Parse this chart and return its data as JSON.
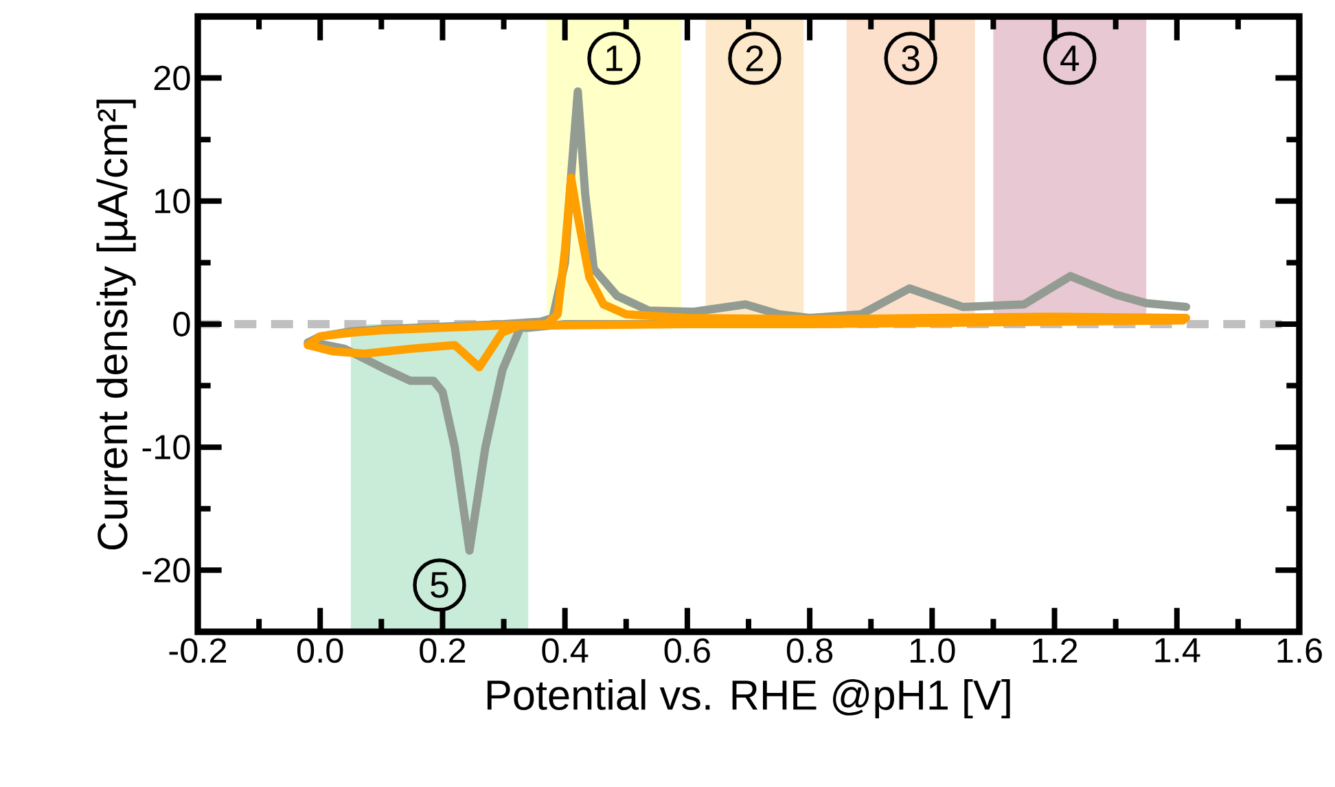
{
  "chart_data": {
    "type": "line",
    "xlabel": "Potential vs. RHE @pH1 [V]",
    "ylabel": "Current density [µA/cm²]",
    "xlim": [
      -0.2,
      1.6
    ],
    "ylim": [
      -25,
      25
    ],
    "xticks": [
      {
        "value": -0.2,
        "label": "-0.2"
      },
      {
        "value": 0.0,
        "label": "0.0"
      },
      {
        "value": 0.2,
        "label": "0.2"
      },
      {
        "value": 0.4,
        "label": "0.4"
      },
      {
        "value": 0.6,
        "label": "0.6"
      },
      {
        "value": 0.8,
        "label": "0.8"
      },
      {
        "value": 1.0,
        "label": "1.0"
      },
      {
        "value": 1.2,
        "label": "1.2"
      },
      {
        "value": 1.4,
        "label": "1.4"
      },
      {
        "value": 1.6,
        "label": "1.6"
      }
    ],
    "yticks": [
      -20,
      -10,
      0,
      10,
      20
    ],
    "line_style": "solid",
    "series": [
      {
        "color": "#929c92",
        "x": [
          -0.02,
          0.0,
          0.05,
          0.1,
          0.2,
          0.3,
          0.36,
          0.38,
          0.4,
          0.41,
          0.421,
          0.433,
          0.447,
          0.485,
          0.537,
          0.61,
          0.695,
          0.75,
          0.8,
          0.884,
          0.963,
          1.05,
          1.15,
          1.226,
          1.3,
          1.35,
          1.415
        ],
        "values": [
          -1.5,
          -1.0,
          -0.6,
          -0.4,
          -0.2,
          0.0,
          0.2,
          0.5,
          5.0,
          12.0,
          18.9,
          10.6,
          4.5,
          2.3,
          1.1,
          1.0,
          1.6,
          0.8,
          0.5,
          0.8,
          2.9,
          1.4,
          1.6,
          3.9,
          2.4,
          1.7,
          1.4
        ]
      },
      {
        "color": "#929c92",
        "x": [
          -0.02,
          0.0,
          0.04,
          0.08,
          0.108,
          0.147,
          0.185,
          0.2,
          0.22,
          0.244,
          0.27,
          0.298,
          0.327,
          0.34,
          0.4,
          0.5,
          0.7,
          0.9,
          1.1,
          1.3,
          1.41
        ],
        "values": [
          -1.5,
          -1.6,
          -2.0,
          -3.0,
          -3.7,
          -4.6,
          -4.6,
          -5.5,
          -10.0,
          -18.4,
          -10.0,
          -3.7,
          -0.3,
          -0.3,
          0.0,
          0.0,
          null,
          0.2,
          0.2,
          0.3,
          0.4
        ]
      },
      {
        "color": "#ff9f00",
        "x": [
          -0.02,
          0.0,
          0.05,
          0.1,
          0.2,
          0.3,
          0.37,
          0.388,
          0.4,
          0.41,
          0.42,
          0.44,
          0.463,
          0.5,
          0.6,
          0.8,
          1.0,
          1.2,
          1.415
        ],
        "values": [
          -1.7,
          -1.0,
          -0.7,
          -0.5,
          -0.3,
          -0.1,
          0.0,
          0.8,
          6.0,
          11.9,
          9.0,
          3.8,
          1.6,
          0.8,
          0.5,
          0.4,
          0.5,
          0.6,
          0.5
        ]
      },
      {
        "color": "#ff9f00",
        "x": [
          -0.02,
          0.02,
          0.072,
          0.15,
          0.22,
          0.26,
          0.297,
          0.327,
          0.4,
          0.6,
          0.8,
          1.0,
          1.2,
          1.41
        ],
        "values": [
          -1.7,
          -2.2,
          -2.4,
          -2.0,
          -1.7,
          -3.5,
          -0.7,
          -0.1,
          -0.1,
          0.0,
          0.0,
          0.1,
          0.2,
          0.3
        ]
      }
    ],
    "ref_lines": [
      {
        "axis": "y",
        "value": 0,
        "color": "#c0c0c0",
        "line_style": "dashed"
      }
    ],
    "bands": [
      {
        "axis": "x",
        "from": 0.37,
        "to": 0.59,
        "label": "1",
        "color": "#ffffc8"
      },
      {
        "axis": "x",
        "from": 0.63,
        "to": 0.79,
        "label": "2",
        "color": "#fde9c9"
      },
      {
        "axis": "x",
        "from": 0.86,
        "to": 1.07,
        "label": "3",
        "color": "#fde0cc"
      },
      {
        "axis": "x",
        "from": 1.1,
        "to": 1.35,
        "label": "4",
        "color": "#e8c8d2"
      },
      {
        "axis": "x",
        "from": 0.05,
        "to": 0.34,
        "label": "5",
        "color": "#c9ecd8"
      }
    ]
  }
}
